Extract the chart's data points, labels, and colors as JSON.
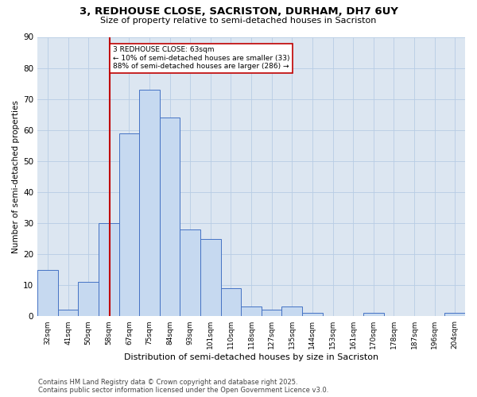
{
  "title_line1": "3, REDHOUSE CLOSE, SACRISTON, DURHAM, DH7 6UY",
  "title_line2": "Size of property relative to semi-detached houses in Sacriston",
  "xlabel": "Distribution of semi-detached houses by size in Sacriston",
  "ylabel": "Number of semi-detached properties",
  "footer_line1": "Contains HM Land Registry data © Crown copyright and database right 2025.",
  "footer_line2": "Contains public sector information licensed under the Open Government Licence v3.0.",
  "annotation_title": "3 REDHOUSE CLOSE: 63sqm",
  "annotation_line1": "← 10% of semi-detached houses are smaller (33)",
  "annotation_line2": "88% of semi-detached houses are larger (286) →",
  "categories": [
    "32sqm",
    "41sqm",
    "50sqm",
    "58sqm",
    "67sqm",
    "75sqm",
    "84sqm",
    "93sqm",
    "101sqm",
    "110sqm",
    "118sqm",
    "127sqm",
    "135sqm",
    "144sqm",
    "153sqm",
    "161sqm",
    "170sqm",
    "178sqm",
    "187sqm",
    "196sqm",
    "204sqm"
  ],
  "values": [
    15,
    2,
    11,
    30,
    59,
    73,
    64,
    28,
    25,
    9,
    3,
    2,
    3,
    1,
    0,
    0,
    1,
    0,
    0,
    0,
    1
  ],
  "bar_color": "#c6d9f0",
  "bar_edge_color": "#4472c4",
  "grid_color": "#b8cce4",
  "background_color": "#dce6f1",
  "vline_color": "#c00000",
  "annotation_box_color": "#c00000",
  "ylim": [
    0,
    90
  ],
  "yticks": [
    0,
    10,
    20,
    30,
    40,
    50,
    60,
    70,
    80,
    90
  ],
  "vline_bar_index": 4,
  "num_bars": 21,
  "title_fontsize": 9.5,
  "subtitle_fontsize": 8,
  "ylabel_fontsize": 7.5,
  "xlabel_fontsize": 8,
  "ytick_fontsize": 7.5,
  "xtick_fontsize": 6.5,
  "footer_fontsize": 6,
  "annotation_fontsize": 6.5
}
